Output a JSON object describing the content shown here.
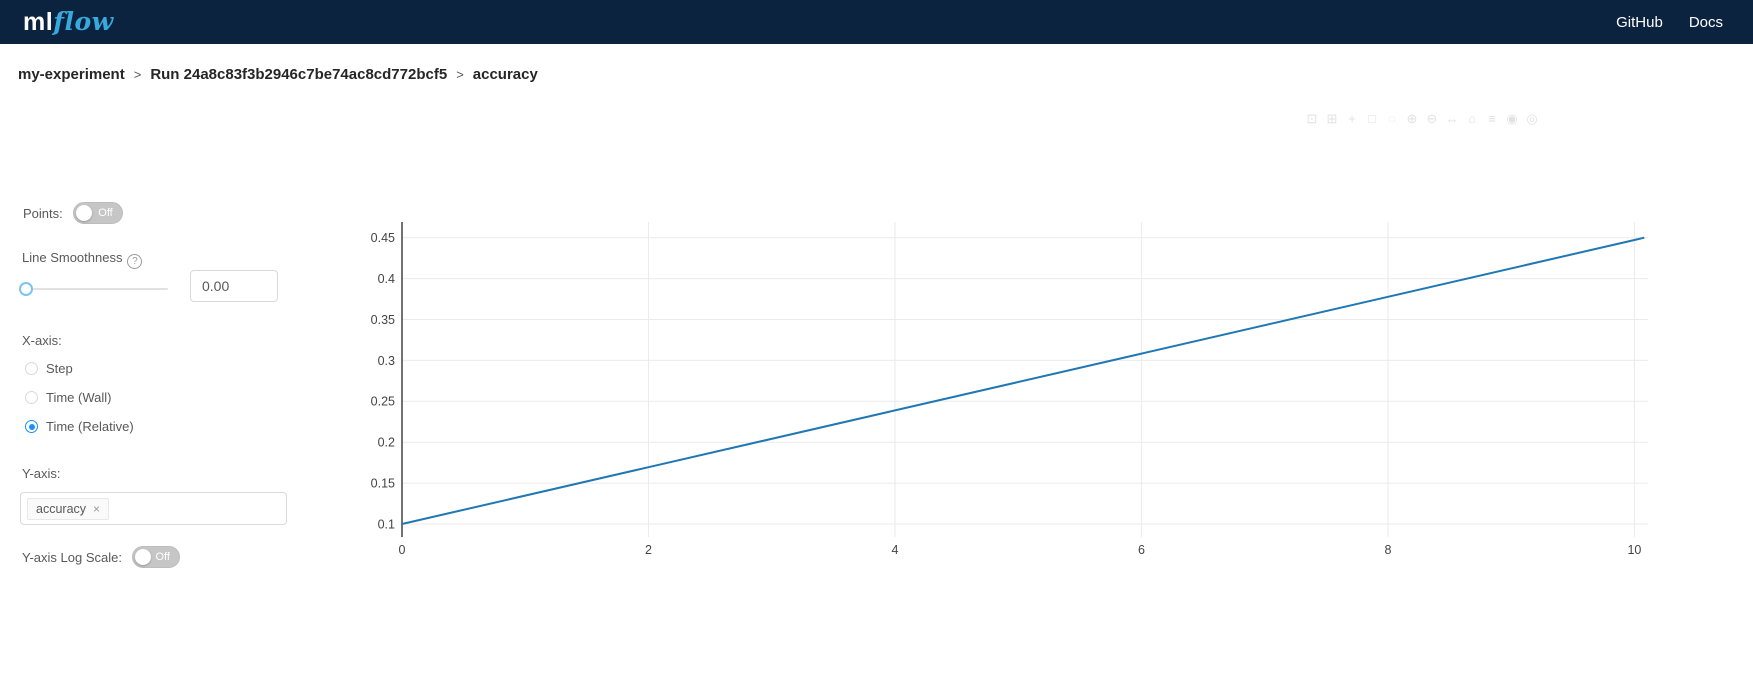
{
  "navbar": {
    "logo": {
      "ml": "ml",
      "flow": "flow"
    },
    "links": [
      {
        "label": "GitHub"
      },
      {
        "label": "Docs"
      }
    ]
  },
  "breadcrumb": {
    "separator": ">",
    "items": [
      "my-experiment",
      "Run 24a8c83f3b2946c7be74ac8cd772bcf5",
      "accuracy"
    ]
  },
  "controls": {
    "points": {
      "label": "Points:",
      "state": "Off"
    },
    "line_smoothness": {
      "label": "Line Smoothness",
      "help_icon": "?",
      "value": "0.00"
    },
    "x_axis": {
      "label": "X-axis:",
      "options": [
        {
          "label": "Step",
          "selected": false
        },
        {
          "label": "Time (Wall)",
          "selected": false
        },
        {
          "label": "Time (Relative)",
          "selected": true
        }
      ]
    },
    "y_axis": {
      "label": "Y-axis:",
      "tags": [
        {
          "label": "accuracy",
          "remove": "×"
        }
      ]
    },
    "log_scale": {
      "label": "Y-axis Log Scale:",
      "state": "Off"
    }
  },
  "modebar": {
    "icons": [
      {
        "name": "camera",
        "glyph": "⊡"
      },
      {
        "name": "zoom",
        "glyph": "⊞"
      },
      {
        "name": "pan",
        "glyph": "+"
      },
      {
        "name": "box-select",
        "glyph": "□"
      },
      {
        "name": "lasso-select",
        "glyph": "◌"
      },
      {
        "name": "zoom-in",
        "glyph": "⊕"
      },
      {
        "name": "zoom-out",
        "glyph": "⊖"
      },
      {
        "name": "autoscale",
        "glyph": "↔"
      },
      {
        "name": "reset-axes",
        "glyph": "⌂"
      },
      {
        "name": "toggle-spikelines",
        "glyph": "≡"
      },
      {
        "name": "hover-closest",
        "glyph": "◉"
      },
      {
        "name": "hover-compare",
        "glyph": "◎"
      }
    ]
  },
  "chart_data": {
    "type": "line",
    "title": "",
    "xlabel": "",
    "ylabel": "",
    "grid": true,
    "legend": "none",
    "x_axis_mode": "Time (Relative)",
    "series": [
      {
        "name": "accuracy",
        "color": "#1f77b4",
        "points": [
          [
            0,
            0.1
          ],
          [
            2,
            0.1694
          ],
          [
            4,
            0.2389
          ],
          [
            6,
            0.3083
          ],
          [
            8,
            0.3778
          ],
          [
            10,
            0.4472
          ],
          [
            10.08,
            0.45
          ]
        ]
      }
    ],
    "x_ticks": [
      0,
      2,
      4,
      6,
      8,
      10
    ],
    "y_ticks": [
      0.1,
      0.15,
      0.2,
      0.25,
      0.3,
      0.35,
      0.4,
      0.45
    ],
    "x_range": [
      0,
      10.11
    ],
    "y_range": [
      0.0841,
      0.4692
    ],
    "colors": {
      "gridline": "#ebebeb",
      "axis_line": "#444444",
      "tick_text": "#444444"
    }
  }
}
